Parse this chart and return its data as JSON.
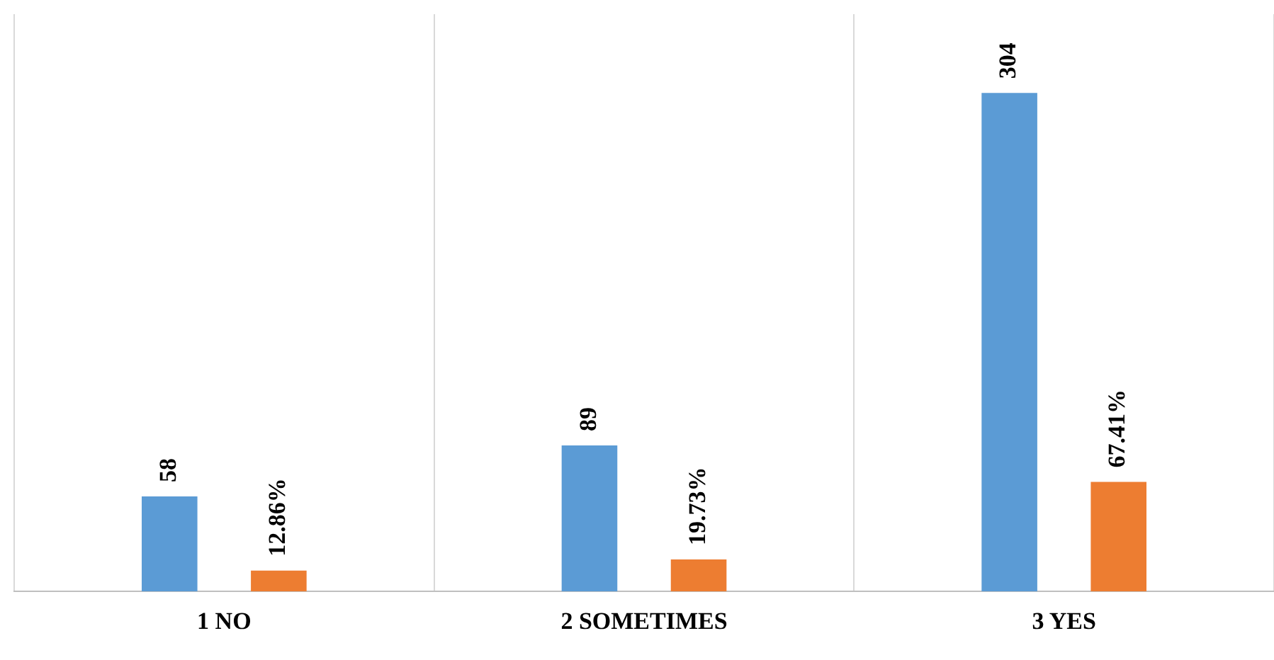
{
  "chart_data": {
    "type": "bar",
    "categories": [
      "1 NO",
      "2 SOMETIMES",
      "3 YES"
    ],
    "series": [
      {
        "color": "#5b9bd5",
        "values": [
          58,
          89,
          304
        ],
        "value_labels": [
          "58",
          "89",
          "304"
        ]
      },
      {
        "color": "#ed7d31",
        "values": [
          12.86,
          19.73,
          67.41
        ],
        "axis": "y2",
        "value_labels": [
          "12.86%",
          "19.73%",
          "67.41%"
        ]
      }
    ],
    "ylim": [
      0,
      352
    ],
    "y2lim": [
      0,
      355
    ],
    "tick_labels": "x",
    "grid": "x",
    "legend": false
  }
}
